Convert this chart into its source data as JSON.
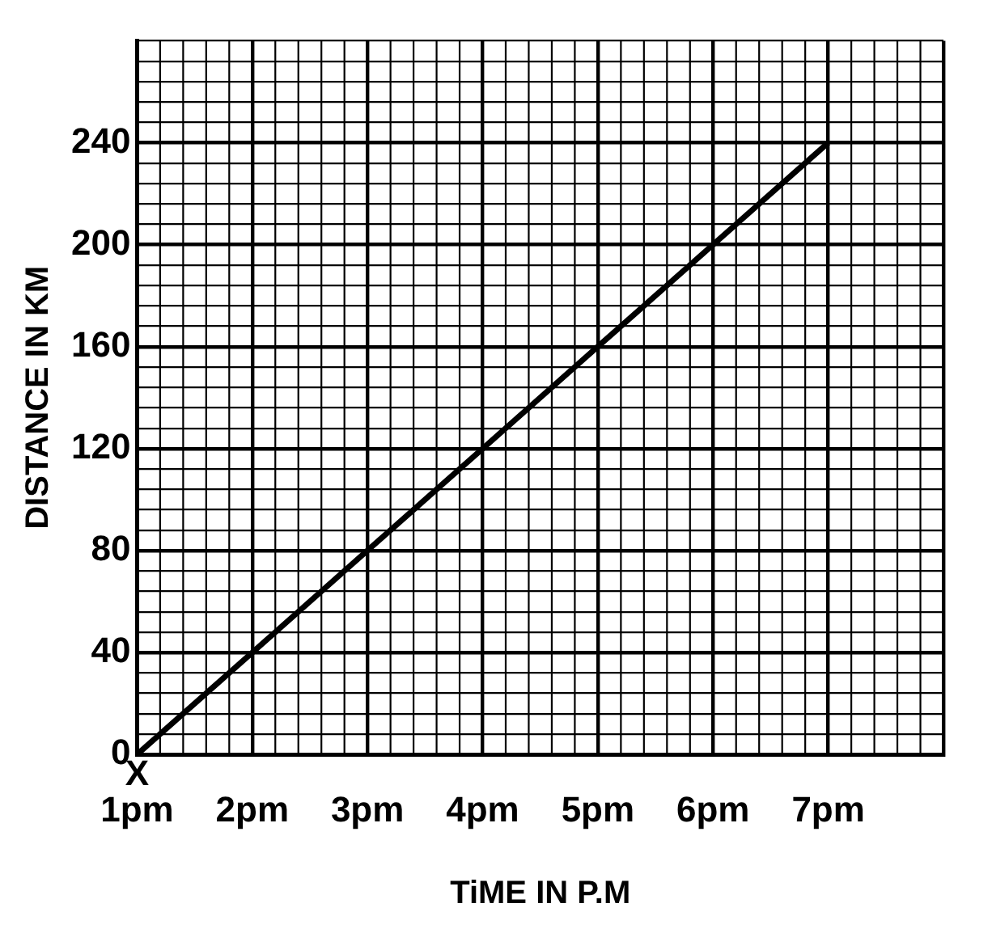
{
  "chart_data": {
    "type": "line",
    "xlabel": "TiME IN P.M",
    "ylabel": "DISTANCE IN KM",
    "categories": [
      "1pm",
      "2pm",
      "3pm",
      "4pm",
      "5pm",
      "6pm",
      "7pm",
      null
    ],
    "series": [
      {
        "color": "#000000",
        "values": [
          0,
          40,
          80,
          120,
          160,
          200,
          240,
          null
        ]
      }
    ],
    "ylim": [
      0,
      280
    ],
    "yticks": [
      0,
      {
        "value": 8,
        "label": null
      },
      {
        "value": 16,
        "label": null
      },
      {
        "value": 24,
        "label": null
      },
      {
        "value": 32,
        "label": null
      },
      40,
      {
        "value": 48,
        "label": null
      },
      {
        "value": 56,
        "label": null
      },
      {
        "value": 64,
        "label": null
      },
      {
        "value": 72,
        "label": null
      },
      80,
      {
        "value": 88,
        "label": null
      },
      {
        "value": 96,
        "label": null
      },
      {
        "value": 104,
        "label": null
      },
      {
        "value": 112,
        "label": null
      },
      120,
      {
        "value": 128,
        "label": null
      },
      {
        "value": 136,
        "label": null
      },
      {
        "value": 144,
        "label": null
      },
      {
        "value": 152,
        "label": null
      },
      160,
      {
        "value": 168,
        "label": null
      },
      {
        "value": 176,
        "label": null
      },
      {
        "value": 184,
        "label": null
      },
      {
        "value": 192,
        "label": null
      },
      200,
      {
        "value": 208,
        "label": null
      },
      {
        "value": 216,
        "label": null
      },
      {
        "value": 224,
        "label": null
      },
      {
        "value": 232,
        "label": null
      },
      240,
      {
        "value": 248,
        "label": null
      },
      {
        "value": 256,
        "label": null
      },
      {
        "value": 264,
        "label": null
      },
      {
        "value": 272,
        "label": null
      },
      {
        "value": 280,
        "label": null
      }
    ],
    "annotations": [
      {
        "text": "X",
        "x": "1pm",
        "y": 0
      }
    ],
    "grid": true,
    "legend": false,
    "marker": "none",
    "line_style": "solid"
  }
}
